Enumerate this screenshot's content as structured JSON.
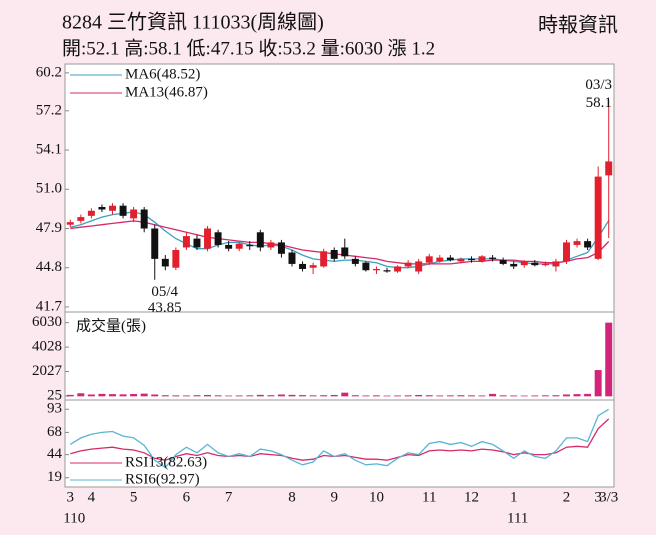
{
  "chart_data": {
    "type": "candlestick",
    "title": "8284  三竹資訊 111033(周線圖)",
    "source": "時報資訊",
    "info": "開:52.1 高:58.1 低:47.15 收:53.2 量:6030 漲 1.2",
    "categories": [
      "3",
      null,
      "4",
      null,
      null,
      null,
      "5",
      null,
      null,
      null,
      null,
      "6",
      null,
      null,
      null,
      "7",
      null,
      null,
      null,
      null,
      null,
      "8",
      null,
      null,
      null,
      "9",
      null,
      null,
      null,
      "10",
      null,
      null,
      null,
      null,
      "11",
      null,
      null,
      null,
      "12",
      null,
      null,
      null,
      "1",
      null,
      null,
      null,
      null,
      "2",
      null,
      null,
      "3",
      "3/3"
    ],
    "year_labels": [
      "110",
      null,
      null,
      null,
      null,
      null,
      null,
      null,
      null,
      null,
      null,
      null,
      null,
      null,
      null,
      null,
      null,
      null,
      null,
      null,
      null,
      null,
      null,
      null,
      null,
      null,
      null,
      null,
      null,
      null,
      null,
      null,
      null,
      null,
      null,
      null,
      null,
      null,
      null,
      null,
      null,
      null,
      "111",
      null,
      null,
      null,
      null,
      null,
      null,
      null,
      null,
      null
    ],
    "open": [
      48.2,
      48.5,
      48.9,
      49.6,
      49.3,
      49.7,
      48.7,
      49.4,
      47.9,
      45.5,
      44.8,
      46.4,
      47.1,
      46.3,
      47.6,
      46.6,
      46.3,
      46.6,
      47.6,
      46.4,
      46.8,
      46.0,
      45.1,
      44.8,
      44.9,
      46.2,
      46.4,
      45.5,
      45.2,
      44.6,
      44.6,
      44.5,
      44.9,
      44.5,
      45.2,
      45.3,
      45.6,
      45.3,
      45.5,
      45.3,
      45.6,
      45.4,
      45.1,
      45.0,
      45.2,
      45.0,
      44.9,
      45.3,
      46.6,
      46.9,
      45.5,
      52.1
    ],
    "high": [
      48.6,
      49.0,
      49.5,
      49.8,
      49.9,
      49.9,
      49.6,
      49.6,
      48.2,
      45.8,
      46.4,
      47.6,
      47.4,
      48.1,
      47.8,
      46.9,
      46.8,
      46.9,
      47.8,
      47.0,
      47.0,
      46.2,
      45.3,
      45.2,
      46.3,
      46.4,
      47.1,
      45.7,
      45.3,
      44.9,
      44.8,
      45.0,
      45.4,
      45.5,
      45.9,
      45.8,
      45.8,
      45.6,
      45.7,
      45.8,
      45.8,
      45.6,
      45.3,
      45.4,
      45.4,
      45.3,
      45.5,
      47.0,
      47.1,
      47.1,
      52.8,
      58.1
    ],
    "low": [
      48.0,
      48.3,
      48.7,
      49.2,
      49.0,
      48.7,
      48.4,
      47.6,
      43.85,
      44.6,
      44.6,
      46.2,
      46.2,
      46.1,
      46.4,
      46.1,
      46.1,
      46.2,
      46.1,
      46.2,
      45.6,
      44.9,
      44.5,
      44.3,
      44.8,
      45.3,
      45.5,
      44.9,
      44.5,
      44.3,
      44.4,
      44.4,
      44.8,
      44.3,
      45.0,
      45.2,
      45.3,
      45.2,
      45.2,
      45.2,
      45.3,
      45.0,
      44.7,
      44.8,
      44.9,
      44.9,
      44.5,
      45.1,
      46.4,
      46.2,
      45.4,
      47.15
    ],
    "close": [
      48.4,
      48.8,
      49.3,
      49.4,
      49.7,
      48.9,
      49.4,
      47.9,
      45.5,
      44.9,
      46.2,
      47.3,
      46.4,
      47.9,
      46.6,
      46.3,
      46.7,
      46.5,
      46.4,
      46.8,
      45.9,
      45.1,
      44.7,
      45.0,
      46.1,
      45.5,
      45.7,
      45.1,
      44.6,
      44.7,
      44.5,
      44.9,
      45.2,
      45.3,
      45.7,
      45.6,
      45.4,
      45.5,
      45.4,
      45.7,
      45.5,
      45.1,
      44.9,
      45.3,
      45.0,
      45.1,
      45.3,
      46.8,
      46.9,
      46.4,
      52.0,
      53.2
    ],
    "up_color": "#e21f2d",
    "down_color": "#111111",
    "ylim": [
      41.3,
      60.9
    ],
    "yticks": [
      41.7,
      44.8,
      47.9,
      {
        "value": 51,
        "label": "51.0"
      },
      54.1,
      57.2,
      60.2
    ],
    "series": [
      {
        "name": "MA6(48.52)",
        "color": "#3aa0c0",
        "values": [
          48.0,
          48.2,
          48.5,
          48.8,
          49.0,
          49.1,
          49.2,
          49.0,
          48.4,
          47.7,
          47.1,
          46.7,
          46.3,
          46.3,
          46.6,
          46.8,
          46.8,
          46.6,
          46.5,
          46.6,
          46.5,
          46.2,
          45.8,
          45.5,
          45.4,
          45.3,
          45.4,
          45.4,
          45.3,
          45.2,
          44.9,
          44.8,
          44.8,
          44.9,
          45.1,
          45.3,
          45.4,
          45.5,
          45.5,
          45.5,
          45.5,
          45.4,
          45.3,
          45.2,
          45.1,
          45.1,
          45.1,
          45.4,
          45.7,
          46.0,
          47.2,
          48.52
        ]
      },
      {
        "name": "MA13(46.87)",
        "color": "#d42a6a",
        "values": [
          47.9,
          48.0,
          48.1,
          48.2,
          48.3,
          48.4,
          48.5,
          48.4,
          48.2,
          48.0,
          47.8,
          47.6,
          47.4,
          47.2,
          47.1,
          47.0,
          46.9,
          46.8,
          46.8,
          46.7,
          46.6,
          46.4,
          46.2,
          46.1,
          46.0,
          45.9,
          45.8,
          45.7,
          45.6,
          45.5,
          45.3,
          45.2,
          45.1,
          45.1,
          45.1,
          45.1,
          45.1,
          45.2,
          45.3,
          45.3,
          45.4,
          45.4,
          45.4,
          45.3,
          45.3,
          45.2,
          45.2,
          45.3,
          45.5,
          45.6,
          46.0,
          46.87
        ]
      }
    ],
    "annotations": [
      {
        "label": "05/4",
        "value": 43.85
      },
      {
        "label": "03/3",
        "value": 58.1
      }
    ],
    "volume": {
      "name": "成交量(張)",
      "color": "#d4237a",
      "ylim": [
        -300,
        6900
      ],
      "yticks": [
        25,
        2027,
        4028,
        6030
      ],
      "values": [
        120,
        250,
        150,
        200,
        180,
        160,
        190,
        220,
        150,
        90,
        80,
        70,
        90,
        110,
        80,
        60,
        70,
        80,
        120,
        90,
        150,
        120,
        100,
        80,
        90,
        110,
        300,
        90,
        70,
        80,
        60,
        70,
        80,
        110,
        90,
        70,
        80,
        90,
        80,
        70,
        200,
        80,
        70,
        60,
        70,
        80,
        90,
        150,
        180,
        200,
        2150,
        6030
      ]
    },
    "rsi": {
      "ylim": [
        9,
        103
      ],
      "yticks": [
        19,
        44,
        68,
        93
      ],
      "series": [
        {
          "name": "RSI13(82.63)",
          "color": "#d42a6a",
          "values": [
            45,
            48,
            50,
            51,
            52,
            50,
            49,
            46,
            40,
            38,
            42,
            45,
            43,
            46,
            43,
            42,
            43,
            42,
            45,
            44,
            43,
            40,
            38,
            39,
            43,
            42,
            43,
            41,
            39,
            39,
            38,
            41,
            44,
            43,
            48,
            49,
            48,
            49,
            48,
            50,
            49,
            47,
            44,
            46,
            44,
            44,
            46,
            52,
            53,
            52,
            72,
            82.63
          ]
        },
        {
          "name": "RSI6(92.97)",
          "color": "#5ab4d6",
          "values": [
            55,
            62,
            66,
            68,
            69,
            64,
            62,
            54,
            38,
            30,
            44,
            52,
            46,
            55,
            46,
            42,
            45,
            42,
            50,
            48,
            44,
            38,
            33,
            36,
            48,
            42,
            45,
            38,
            33,
            34,
            32,
            40,
            46,
            44,
            56,
            58,
            55,
            57,
            53,
            58,
            55,
            48,
            40,
            48,
            42,
            40,
            48,
            62,
            62,
            58,
            86,
            92.97
          ]
        }
      ]
    }
  }
}
